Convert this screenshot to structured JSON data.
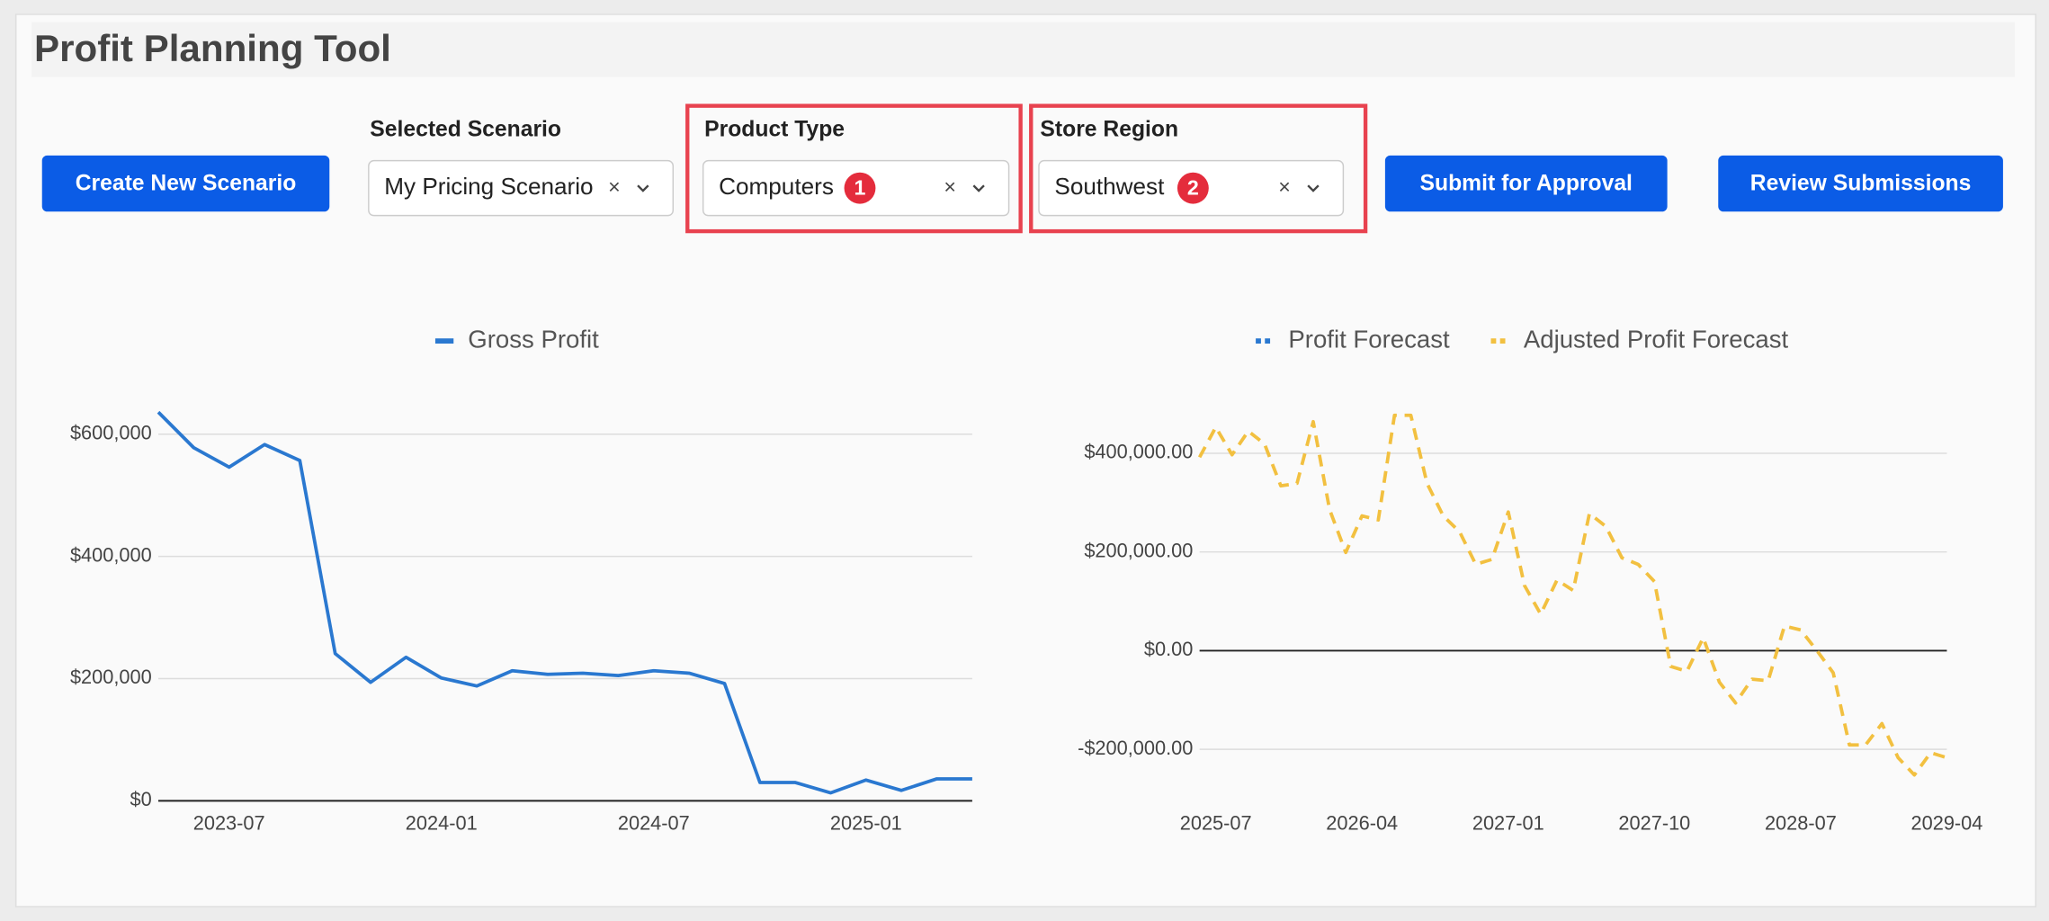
{
  "header": {
    "title": "Profit Planning Tool"
  },
  "controls": {
    "create_button": "Create New Scenario",
    "scenario": {
      "label": "Selected Scenario",
      "value": "My Pricing Scenario"
    },
    "product_type": {
      "label": "Product Type",
      "value": "Computers",
      "badge": "1"
    },
    "store_region": {
      "label": "Store Region",
      "value": "Southwest",
      "badge": "2"
    },
    "submit_button": "Submit for Approval",
    "review_button": "Review Submissions"
  },
  "chart_data": [
    {
      "type": "line",
      "x": [
        "2023-05",
        "2023-06",
        "2023-07",
        "2023-08",
        "2023-09",
        "2023-10",
        "2023-11",
        "2023-12",
        "2024-01",
        "2024-02",
        "2024-03",
        "2024-04",
        "2024-05",
        "2024-06",
        "2024-07",
        "2024-08",
        "2024-09",
        "2024-10",
        "2024-11",
        "2024-12",
        "2025-01",
        "2025-02",
        "2025-03",
        "2025-04"
      ],
      "xticks": [
        "2023-07",
        "2024-01",
        "2024-07",
        "2025-01"
      ],
      "ylim": [
        0,
        650000
      ],
      "yticks": [
        {
          "value": 0,
          "label": "$0"
        },
        {
          "value": 200000,
          "label": "$200,000"
        },
        {
          "value": 400000,
          "label": "$400,000"
        },
        {
          "value": 600000,
          "label": "$600,000"
        }
      ],
      "grid": true,
      "series": [
        {
          "name": "Gross Profit",
          "color": "#2a78d0",
          "dashed": false,
          "values": [
            636000,
            578000,
            546000,
            583000,
            557000,
            241000,
            194000,
            235000,
            201000,
            188000,
            213000,
            207000,
            209000,
            205000,
            213000,
            209000,
            192000,
            30000,
            30000,
            13000,
            34000,
            17000,
            36000,
            36000
          ]
        }
      ]
    },
    {
      "type": "line",
      "x": [
        "2025-06",
        "2025-07",
        "2025-08",
        "2025-09",
        "2025-10",
        "2025-11",
        "2025-12",
        "2026-01",
        "2026-02",
        "2026-03",
        "2026-04",
        "2026-05",
        "2026-06",
        "2026-07",
        "2026-08",
        "2026-09",
        "2026-10",
        "2026-11",
        "2026-12",
        "2027-01",
        "2027-02",
        "2027-03",
        "2027-04",
        "2027-05",
        "2027-06",
        "2027-07",
        "2027-08",
        "2027-09",
        "2027-10",
        "2027-11",
        "2027-12",
        "2028-01",
        "2028-02",
        "2028-03",
        "2028-04",
        "2028-05",
        "2028-06",
        "2028-07",
        "2028-08",
        "2028-09",
        "2028-10",
        "2028-11",
        "2028-12",
        "2029-01",
        "2029-02",
        "2029-03",
        "2029-04"
      ],
      "xticks": [
        "2025-07",
        "2026-04",
        "2027-01",
        "2027-10",
        "2028-07",
        "2029-04"
      ],
      "ylim": [
        -270000,
        490000
      ],
      "yticks": [
        {
          "value": -200000,
          "label": "-$200,000.00"
        },
        {
          "value": 0,
          "label": "$0.00"
        },
        {
          "value": 200000,
          "label": "$200,000.00"
        },
        {
          "value": 400000,
          "label": "$400,000.00"
        }
      ],
      "grid": true,
      "series": [
        {
          "name": "Profit Forecast",
          "color": "#2a78d0",
          "dashed": true,
          "values": [
            null,
            null,
            null,
            null,
            null,
            null,
            null,
            null,
            null,
            null,
            null,
            null,
            null,
            null,
            null,
            null,
            null,
            null,
            null,
            null,
            null,
            null,
            null,
            null,
            null,
            null,
            null,
            null,
            null,
            null,
            null,
            null,
            null,
            null,
            null,
            null,
            null,
            null,
            null,
            null,
            null,
            null,
            null,
            null,
            null,
            null,
            null
          ]
        },
        {
          "name": "Adjusted Profit Forecast",
          "color": "#f2c040",
          "dashed": true,
          "values": [
            392000,
            453000,
            397000,
            445000,
            419000,
            334000,
            339000,
            464000,
            286000,
            199000,
            273000,
            265000,
            477000,
            477000,
            339000,
            273000,
            241000,
            175000,
            185000,
            281000,
            132000,
            74000,
            143000,
            122000,
            278000,
            252000,
            188000,
            175000,
            140000,
            -32000,
            -42000,
            26000,
            -64000,
            -106000,
            -58000,
            -61000,
            50000,
            42000,
            0,
            -45000,
            -191000,
            -191000,
            -148000,
            -217000,
            -252000,
            -207000,
            -217000
          ]
        }
      ]
    }
  ]
}
